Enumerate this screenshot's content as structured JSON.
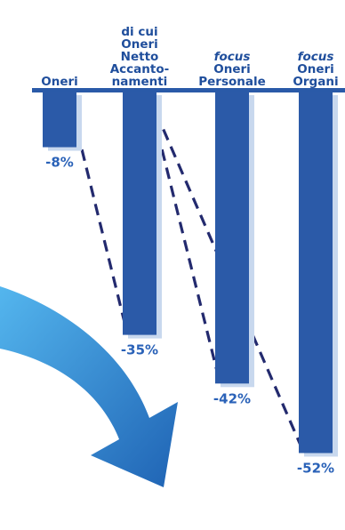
{
  "colors": {
    "bar": "#2b5aa8",
    "bar_shadow": "#c8d8ee",
    "header": "#1f4e9c",
    "value_label": "#2a62b8",
    "baseline": "#2a5aa8",
    "connector": "#232a6e",
    "arrow_light": "#54b6ee",
    "arrow_dark": "#1f63b4"
  },
  "chart_data": {
    "type": "bar",
    "categories": [
      {
        "lines": [
          {
            "text": "Oneri",
            "italic": false
          }
        ]
      },
      {
        "lines": [
          {
            "text": "di cui",
            "italic": false
          },
          {
            "text": "Oneri",
            "italic": false
          },
          {
            "text": "Netto",
            "italic": false
          },
          {
            "text": "Accanto-",
            "italic": false
          },
          {
            "text": "namenti",
            "italic": false
          }
        ]
      },
      {
        "lines": [
          {
            "text": "focus",
            "italic": true
          },
          {
            "text": "Oneri",
            "italic": false
          },
          {
            "text": "Personale",
            "italic": false
          }
        ]
      },
      {
        "lines": [
          {
            "text": "focus",
            "italic": true
          },
          {
            "text": "Oneri",
            "italic": false
          },
          {
            "text": "Organi",
            "italic": false
          }
        ]
      }
    ],
    "values": [
      -8,
      -35,
      -42,
      -52
    ],
    "value_labels": [
      "-8%",
      "-35%",
      "-42%",
      "-52%"
    ],
    "ylim": [
      -60,
      0
    ],
    "grid": false,
    "connectors": "dashed"
  }
}
